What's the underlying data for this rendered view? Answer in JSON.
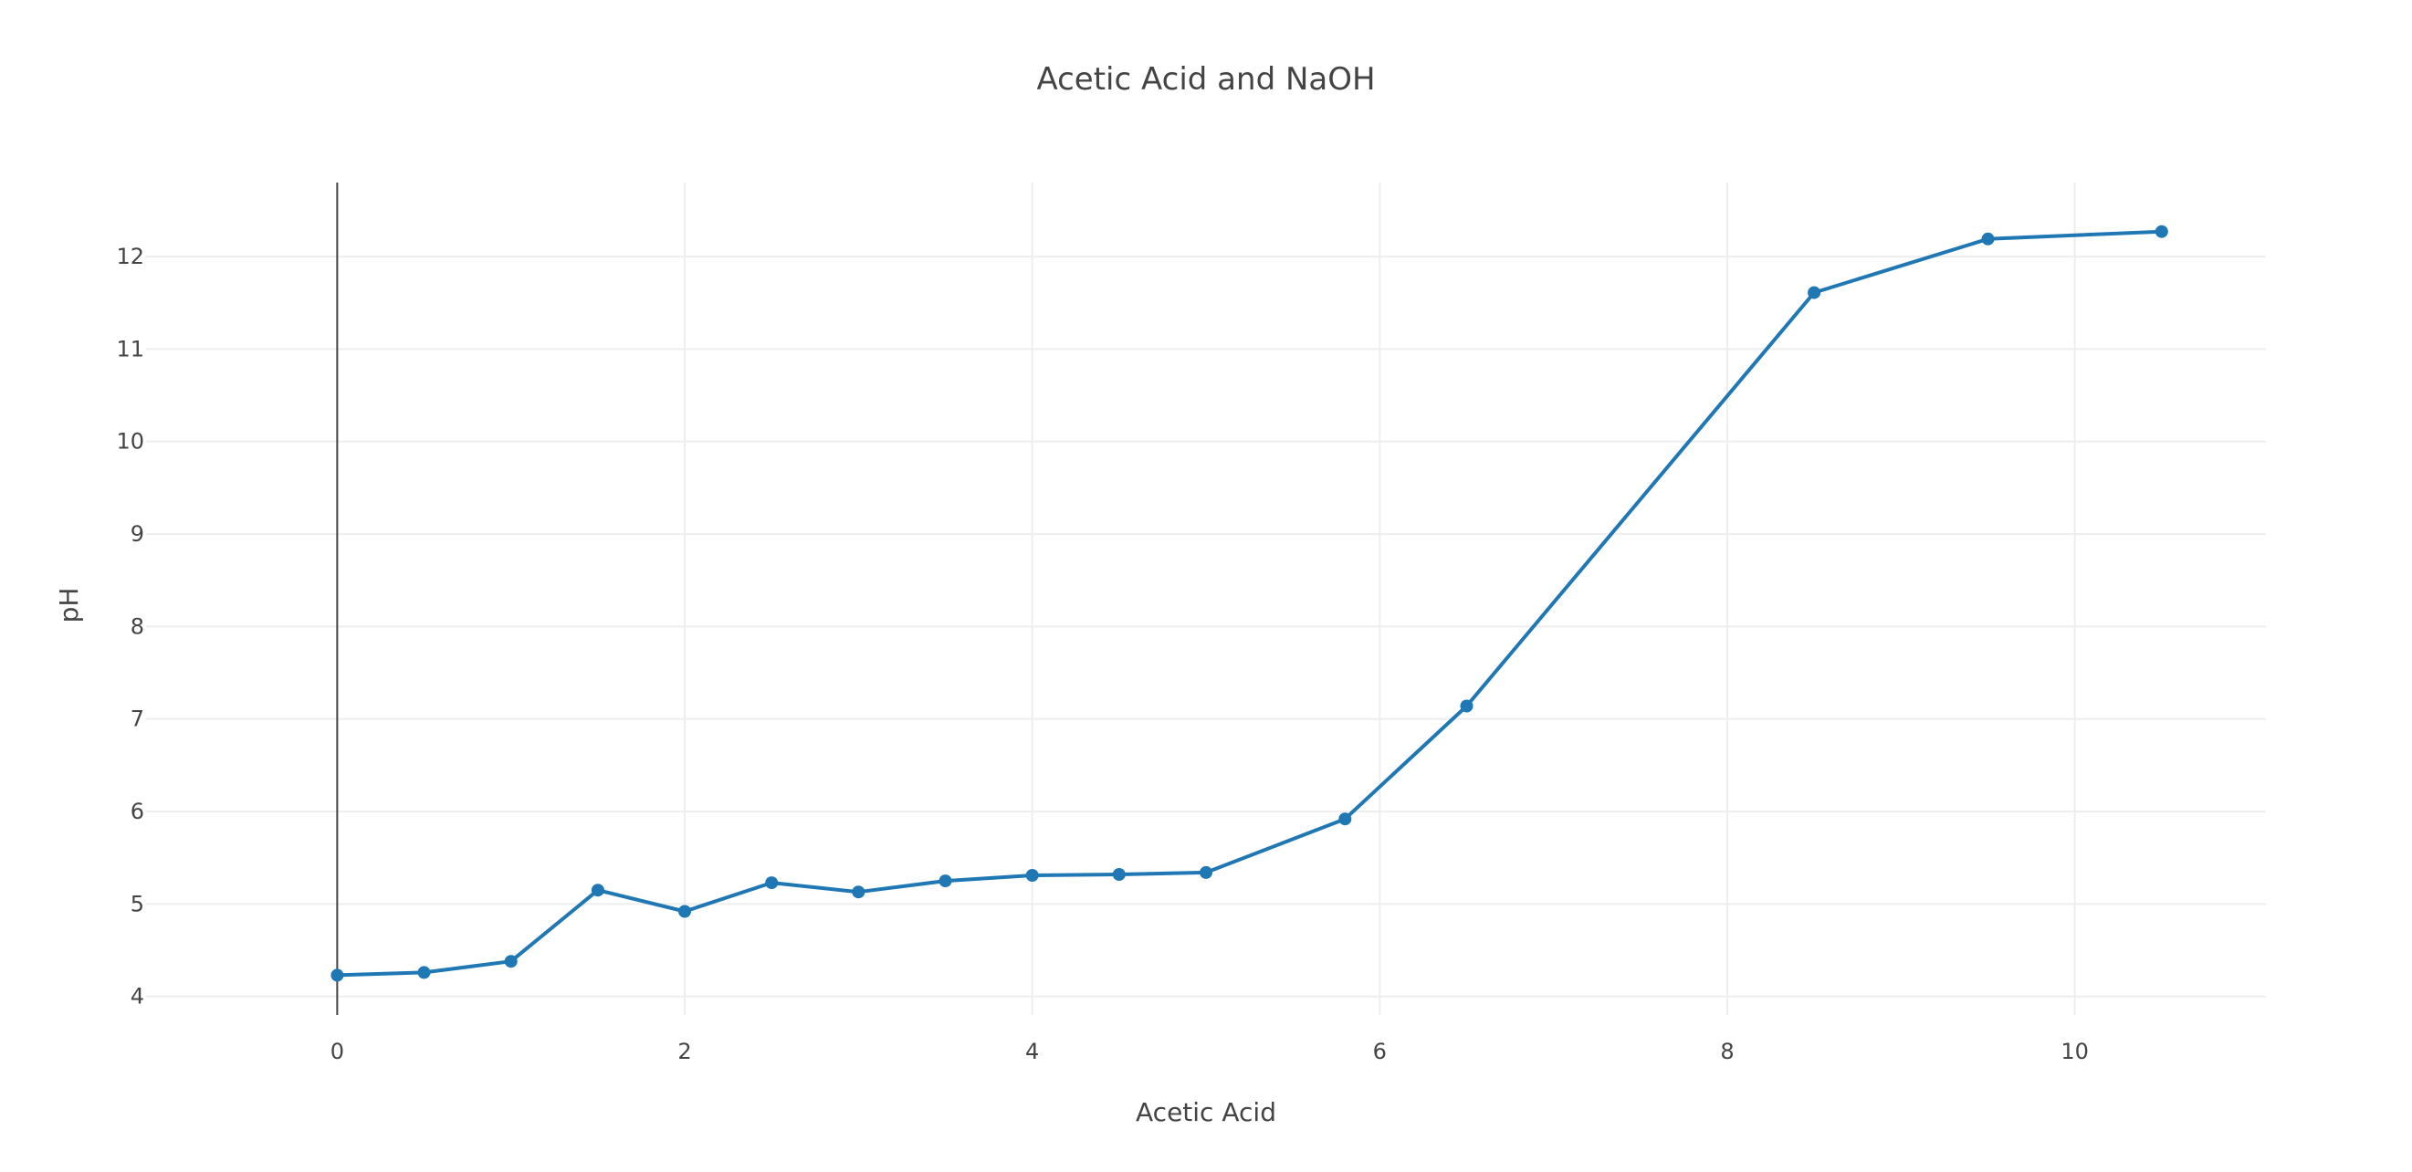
{
  "chart_data": {
    "type": "line",
    "title": "Acetic Acid and NaOH",
    "xlabel": "Acetic Acid",
    "ylabel": "pH",
    "xlim": [
      -1.1,
      11.1
    ],
    "ylim": [
      3.8,
      12.8
    ],
    "x_ticks": [
      0,
      2,
      4,
      6,
      8,
      10
    ],
    "y_ticks": [
      4,
      5,
      6,
      7,
      8,
      9,
      10,
      11,
      12
    ],
    "grid": true,
    "zeroline_x": true,
    "color": "#1f77b4",
    "series": [
      {
        "mode": "lines+markers",
        "x": [
          0,
          0.5,
          1,
          1.5,
          2,
          2.5,
          3,
          3.5,
          4,
          4.5,
          5,
          5.8,
          6.5,
          8.5,
          9.5,
          10.5
        ],
        "y": [
          4.23,
          4.26,
          4.38,
          5.15,
          4.92,
          5.23,
          5.13,
          5.25,
          5.31,
          5.32,
          5.34,
          5.92,
          7.14,
          11.61,
          12.19,
          12.27
        ]
      }
    ]
  }
}
